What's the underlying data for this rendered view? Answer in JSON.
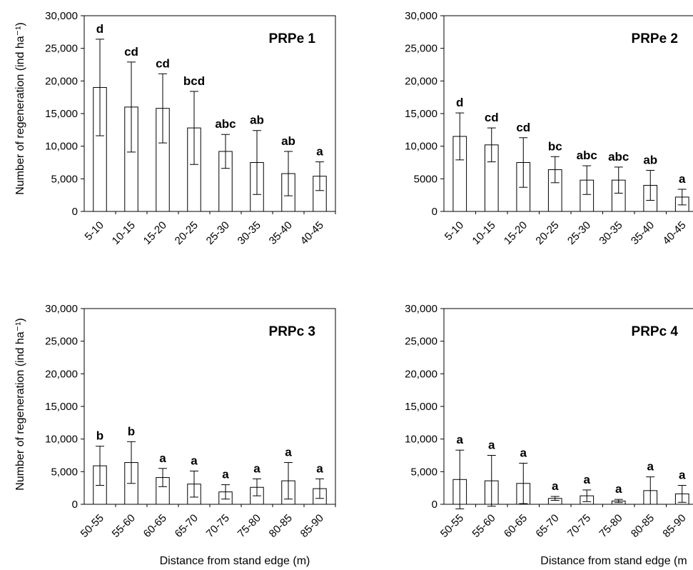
{
  "chart_data": [
    {
      "type": "bar",
      "title": "PRPe 1",
      "ylabel": "Number of regeneration (ind ha⁻¹)",
      "xlabel": "",
      "ylim": [
        0,
        30000
      ],
      "yticks": [
        "0",
        "5,000",
        "10,000",
        "15,000",
        "20,000",
        "25,000",
        "30,000"
      ],
      "categories": [
        "5-10",
        "10-15",
        "15-20",
        "20-25",
        "25-30",
        "30-35",
        "35-40",
        "40-45"
      ],
      "values": [
        19000,
        16000,
        15800,
        12800,
        9200,
        7500,
        5800,
        5400
      ],
      "errors": [
        7400,
        6900,
        5300,
        5600,
        2600,
        4900,
        3400,
        2200
      ],
      "labels": [
        "d",
        "cd",
        "cd",
        "bcd",
        "abc",
        "ab",
        "ab",
        "a"
      ]
    },
    {
      "type": "bar",
      "title": "PRPe 2",
      "ylabel": "",
      "xlabel": "",
      "ylim": [
        0,
        30000
      ],
      "yticks": [
        "0",
        "5000",
        "10,000",
        "15,000",
        "20,000",
        "25,000",
        "30,000"
      ],
      "categories": [
        "5-10",
        "10-15",
        "15-20",
        "20-25",
        "25-30",
        "30-35",
        "35-40",
        "40-45"
      ],
      "values": [
        11500,
        10200,
        7500,
        6400,
        4800,
        4800,
        4000,
        2200
      ],
      "errors": [
        3600,
        2600,
        3800,
        2000,
        2200,
        2000,
        2300,
        1200
      ],
      "labels": [
        "d",
        "cd",
        "cd",
        "bc",
        "abc",
        "abc",
        "ab",
        "a"
      ]
    },
    {
      "type": "bar",
      "title": "PRPc 3",
      "ylabel": "Number of regeneration (ind ha⁻¹)",
      "xlabel": "Distance from stand edge (m)",
      "ylim": [
        0,
        30000
      ],
      "yticks": [
        "0",
        "5,000",
        "10,000",
        "15,000",
        "20,000",
        "25,000",
        "30,000"
      ],
      "categories": [
        "50-55",
        "55-60",
        "60-65",
        "65-70",
        "70-75",
        "75-80",
        "80-85",
        "85-90"
      ],
      "values": [
        5900,
        6400,
        4100,
        3100,
        1900,
        2600,
        3600,
        2400
      ],
      "errors": [
        3000,
        3200,
        1400,
        2000,
        1100,
        1300,
        2800,
        1500
      ],
      "labels": [
        "b",
        "b",
        "a",
        "a",
        "a",
        "a",
        "a",
        "a"
      ]
    },
    {
      "type": "bar",
      "title": "PRPc 4",
      "ylabel": "",
      "xlabel": "Distance from stand edge (m",
      "ylim": [
        0,
        30000
      ],
      "yticks": [
        "0",
        "5,000",
        "10,000",
        "15,000",
        "20,000",
        "25,000",
        "30,000"
      ],
      "categories": [
        "50-55",
        "55-60",
        "60-65",
        "65-70",
        "70-75",
        "75-80",
        "80-85",
        "85-90"
      ],
      "values": [
        3800,
        3600,
        3200,
        900,
        1300,
        500,
        2100,
        1600
      ],
      "errors": [
        4500,
        3900,
        3100,
        300,
        900,
        250,
        2100,
        1300
      ],
      "labels": [
        "a",
        "a",
        "a",
        "a",
        "a",
        "a",
        "a",
        "a"
      ]
    }
  ]
}
